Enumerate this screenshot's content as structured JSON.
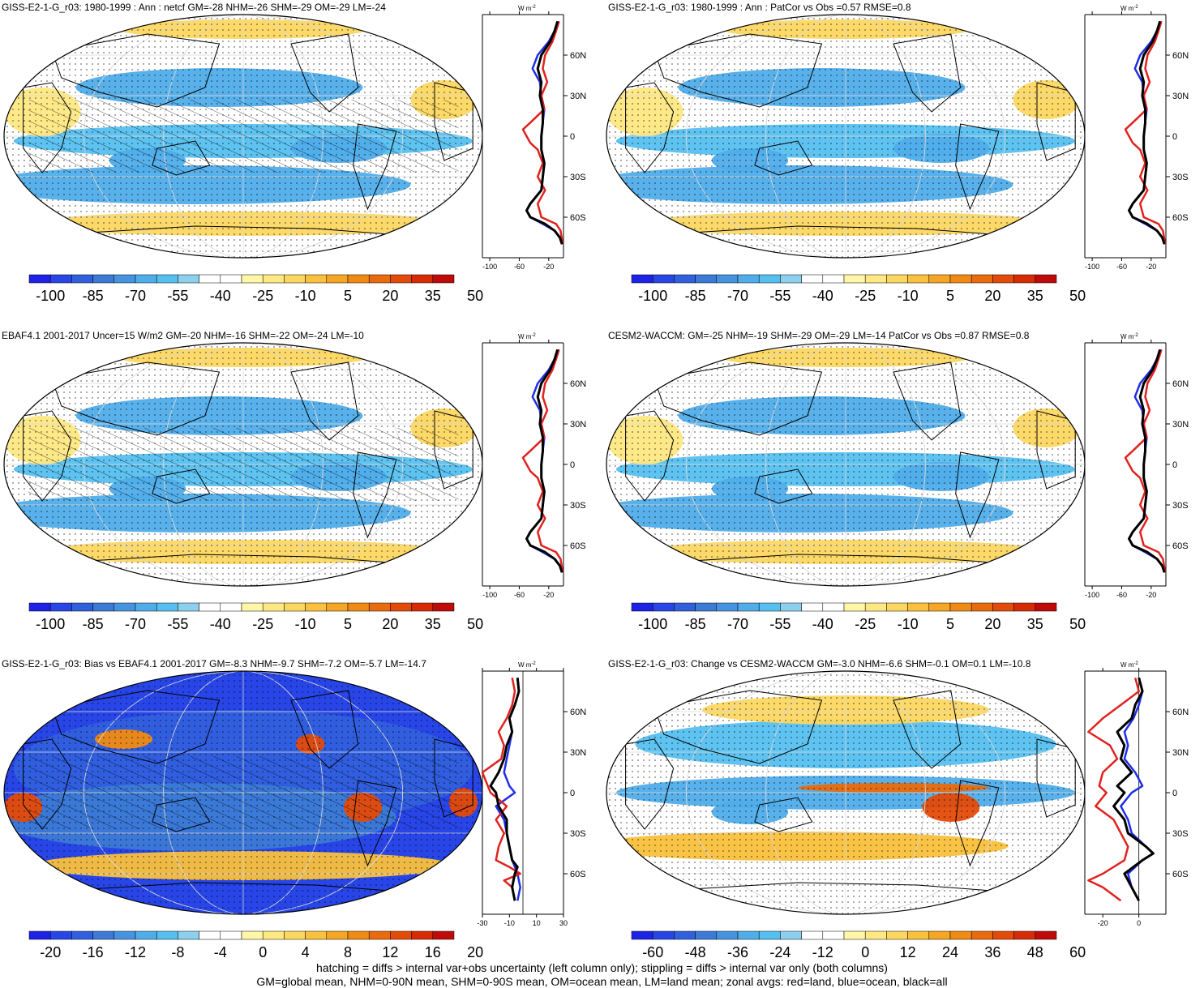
{
  "panels": [
    {
      "title": "GISS-E2-1-G_r03: 1980-1999 : Ann : netcf GM=-28 NHM=-26 SHM=-29 OM=-29 LM=-24",
      "palette": "full",
      "hatching": true,
      "colorbar": {
        "labels": [
          "-100",
          "-85",
          "-70",
          "-55",
          "-40",
          "-25",
          "-10",
          "5",
          "20",
          "35",
          "50"
        ]
      },
      "zonal": {
        "xticks": [
          "-100",
          "-60",
          "-20"
        ],
        "xmin": -110,
        "xmax": 0
      }
    },
    {
      "title": "GISS-E2-1-G_r03: 1980-1999 : Ann : PatCor vs Obs =0.57 RMSE=0.8",
      "palette": "full",
      "hatching": false,
      "colorbar": {
        "labels": [
          "-100",
          "-85",
          "-70",
          "-55",
          "-40",
          "-25",
          "-10",
          "5",
          "20",
          "35",
          "50"
        ]
      },
      "zonal": {
        "xticks": [
          "-100",
          "-60",
          "-20"
        ],
        "xmin": -110,
        "xmax": 0
      }
    },
    {
      "title": "EBAF4.1 2001-2017 Uncer=15 W/m2 GM=-20 NHM=-16 SHM=-22 OM=-24 LM=-10",
      "palette": "full",
      "hatching": true,
      "colorbar": {
        "labels": [
          "-100",
          "-85",
          "-70",
          "-55",
          "-40",
          "-25",
          "-10",
          "5",
          "20",
          "35",
          "50"
        ]
      },
      "zonal": {
        "xticks": [
          "-100",
          "-60",
          "-20"
        ],
        "xmin": -110,
        "xmax": 0
      }
    },
    {
      "title": "CESM2-WACCM: GM=-25 NHM=-19 SHM=-29 OM=-29 LM=-14 PatCor vs Obs =0.87 RMSE=0.8",
      "palette": "full",
      "hatching": false,
      "colorbar": {
        "labels": [
          "-100",
          "-85",
          "-70",
          "-55",
          "-40",
          "-25",
          "-10",
          "5",
          "20",
          "35",
          "50"
        ]
      },
      "zonal": {
        "xticks": [
          "-100",
          "-60",
          "-20"
        ],
        "xmin": -110,
        "xmax": 0
      }
    },
    {
      "title": "GISS-E2-1-G_r03: Bias vs EBAF4.1 2001-2017 GM=-8.3 NHM=-9.7 SHM=-7.2 OM=-5.7 LM=-14.7",
      "palette": "bias",
      "hatching": true,
      "colorbar": {
        "labels": [
          "-20",
          "-16",
          "-12",
          "-8",
          "-4",
          "0",
          "4",
          "8",
          "12",
          "16",
          "20"
        ]
      },
      "zonal": {
        "xticks": [
          "-30",
          "-10",
          "10",
          "30"
        ],
        "xmin": -30,
        "xmax": 30
      }
    },
    {
      "title": "GISS-E2-1-G_r03: Change vs CESM2-WACCM GM=-3.0 NHM=-6.6 SHM=-0.1 OM=0.1 LM=-10.8",
      "palette": "change",
      "hatching": false,
      "colorbar": {
        "labels": [
          "-60",
          "-48",
          "-36",
          "-24",
          "-12",
          "0",
          "12",
          "24",
          "36",
          "48",
          "60"
        ]
      },
      "zonal": {
        "xticks": [
          "-20",
          "0"
        ],
        "xmin": -30,
        "xmax": 15
      }
    }
  ],
  "zonal_unit": "W m",
  "zonal_unit_sup": "-2",
  "lat_labels": [
    "60N",
    "30N",
    "0",
    "30S",
    "60S"
  ],
  "colors": {
    "full": [
      "#1e22e6",
      "#2845e8",
      "#3060de",
      "#3c7ad6",
      "#4694e0",
      "#4fadea",
      "#55c0f0",
      "#8dd0ee",
      "#ffffff",
      "#ffffff",
      "#fff6a8",
      "#fee882",
      "#fcd760",
      "#f9c13c",
      "#f5a623",
      "#f08a12",
      "#ea6a0c",
      "#e44a08",
      "#d82a05",
      "#c00a0a"
    ],
    "change": [
      "#1e22e6",
      "#2845e8",
      "#3060de",
      "#3c7ad6",
      "#4694e0",
      "#4fadea",
      "#55c0f0",
      "#8dd0ee",
      "#ffffff",
      "#ffffff",
      "#fff6a8",
      "#fee882",
      "#fcd760",
      "#f9c13c",
      "#f5a623",
      "#f08a12",
      "#ea6a0c",
      "#e44a08",
      "#d82a05",
      "#c00a0a"
    ],
    "bias": [
      "#1e22e6",
      "#2845e8",
      "#3060de",
      "#3c7ad6",
      "#4694e0",
      "#4fadea",
      "#55c0f0",
      "#8dd0ee",
      "#ffffff",
      "#ffffff",
      "#fff6a8",
      "#fee882",
      "#fcd760",
      "#f9c13c",
      "#f5a623",
      "#f08a12",
      "#ea6a0c",
      "#e44a08",
      "#d82a05",
      "#c00a0a"
    ],
    "land_line": "#e0221e",
    "ocean_line": "#1f2ee6",
    "all_line": "#000000"
  },
  "footer": {
    "line1": "hatching = diffs > internal var+obs uncertainty (left column only); stippling = diffs > internal var only (both columns)",
    "line2": "GM=global mean, NHM=0-90N mean, SHM=0-90S mean, OM=ocean mean, LM=land mean; zonal avgs: red=land, blue=ocean, black=all"
  }
}
